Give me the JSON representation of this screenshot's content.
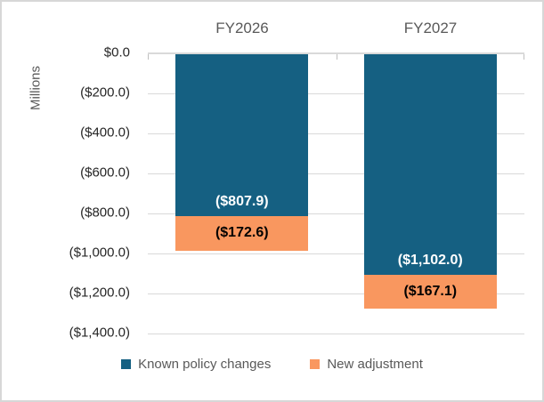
{
  "chart_data": {
    "type": "bar",
    "subtype": "stacked",
    "orientation": "vertical-negative",
    "unit_label": "Millions",
    "categories": [
      "FY2026",
      "FY2027"
    ],
    "series": [
      {
        "name": "Known policy changes",
        "color": "#156082",
        "values": [
          -807.9,
          -1102.0
        ],
        "labels": [
          "($807.9)",
          "($1,102.0)"
        ],
        "label_color": "#FFFFFF",
        "label_position": "inside-end"
      },
      {
        "name": "New adjustment",
        "color": "#F9975F",
        "values": [
          -172.6,
          -167.1
        ],
        "labels": [
          "($172.6)",
          "($167.1)"
        ],
        "label_color": "#000000",
        "label_position": "center"
      }
    ],
    "ylim": [
      -1400,
      0
    ],
    "ytick_interval": 200,
    "yticks": [
      "$0.0",
      "($200.0)",
      "($400.0)",
      "($600.0)",
      "($800.0)",
      "($1,000.0)",
      "($1,200.0)",
      "($1,400.0)"
    ],
    "grid": true,
    "grid_color": "#D9D9D9",
    "axis_text_color": "#262626",
    "muted_text_color": "#595959",
    "legend_position": "bottom"
  }
}
